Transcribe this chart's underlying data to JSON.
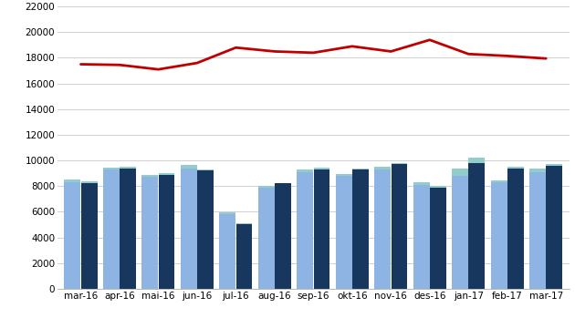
{
  "categories": [
    "mar-16",
    "apr-16",
    "mai-16",
    "jun-16",
    "jul-16",
    "aug-16",
    "sep-16",
    "okt-16",
    "nov-16",
    "des-16",
    "jan-17",
    "feb-17",
    "mar-17"
  ],
  "bar_light_blue": [
    8300,
    9300,
    8750,
    9400,
    5800,
    7900,
    9100,
    8800,
    9300,
    8100,
    8800,
    8300,
    9100
  ],
  "bar_dark_blue": [
    8200,
    9400,
    8900,
    9200,
    5000,
    8200,
    9300,
    9300,
    9700,
    7900,
    9800,
    9400,
    9600
  ],
  "bar_teal_light": [
    200,
    150,
    150,
    250,
    150,
    150,
    200,
    150,
    200,
    200,
    600,
    150,
    250
  ],
  "bar_teal_dark": [
    150,
    100,
    100,
    100,
    100,
    50,
    150,
    100,
    100,
    100,
    450,
    100,
    100
  ],
  "line_values": [
    17500,
    17450,
    17100,
    17600,
    18800,
    18500,
    18400,
    18900,
    18500,
    19400,
    18300,
    18150,
    17950
  ],
  "bar_light_blue_color": "#8eb4e3",
  "bar_dark_blue_color": "#17375e",
  "bar_teal_color": "#92cdcd",
  "line_color": "#c00000",
  "background_color": "#ffffff",
  "grid_color": "#d0d0d0",
  "ylim": [
    0,
    22000
  ],
  "yticks": [
    0,
    2000,
    4000,
    6000,
    8000,
    10000,
    12000,
    14000,
    16000,
    18000,
    20000,
    22000
  ],
  "ytick_labels": [
    "0",
    "2000",
    "4000",
    "6000",
    "8000",
    "10000",
    "12000",
    "14000",
    "16000",
    "18000",
    "20000",
    "22000"
  ]
}
